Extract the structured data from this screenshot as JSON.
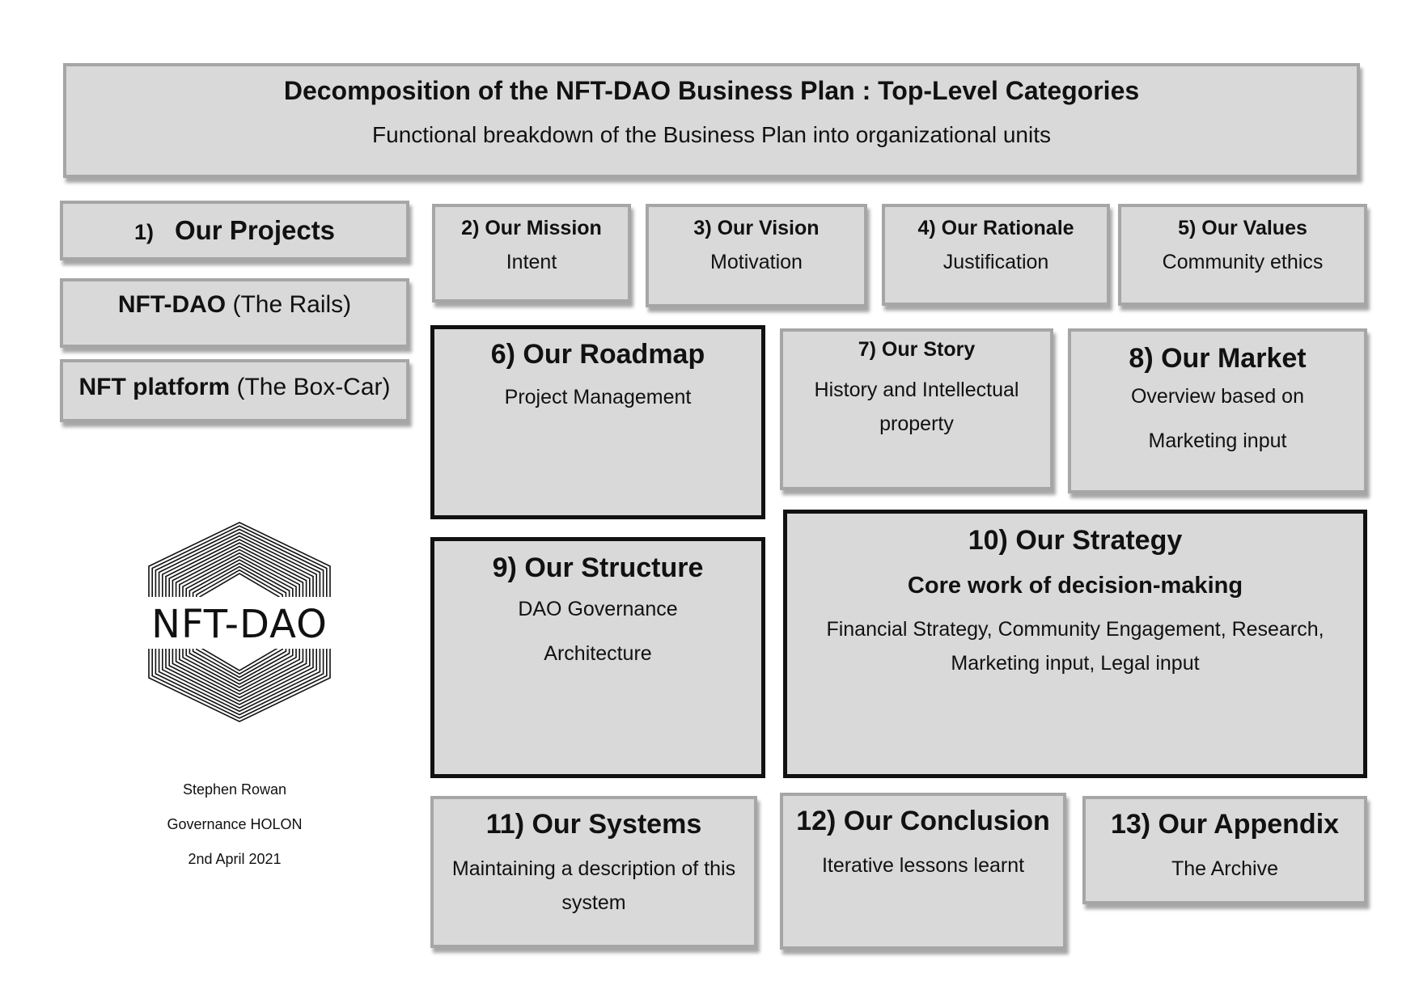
{
  "header": {
    "title": "Decomposition of the NFT-DAO Business Plan : Top-Level Categories",
    "subtitle": "Functional breakdown of the Business Plan into organizational units"
  },
  "projects": {
    "number": "1)",
    "title": "Our Projects",
    "items": [
      {
        "bold": "NFT-DAO",
        "rest": " (The Rails)"
      },
      {
        "bold": "NFT platform",
        "rest": " (The Box-Car)"
      }
    ]
  },
  "categories": {
    "mission": {
      "title": "2) Our Mission",
      "sub": "Intent"
    },
    "vision": {
      "title": "3) Our Vision",
      "sub": "Motivation"
    },
    "rationale": {
      "title": "4) Our Rationale",
      "sub": "Justification"
    },
    "values": {
      "title": "5) Our Values",
      "sub": "Community ethics"
    },
    "roadmap": {
      "title": "6) Our Roadmap",
      "sub": "Project Management"
    },
    "story": {
      "title": "7) Our Story",
      "sub1": "History and Intellectual",
      "sub2": "property"
    },
    "market": {
      "title": "8) Our Market",
      "sub1": "Overview based on",
      "sub2": "Marketing input"
    },
    "structure": {
      "title": "9) Our Structure",
      "sub1": "DAO Governance",
      "sub2": "Architecture"
    },
    "strategy": {
      "title": "10) Our Strategy",
      "subtitle": "Core work of decision-making",
      "sub1": "Financial Strategy, Community Engagement, Research,",
      "sub2": "Marketing input, Legal input"
    },
    "systems": {
      "title": "11) Our Systems",
      "sub1": "Maintaining a description of this",
      "sub2": "system"
    },
    "conclusion": {
      "title": "12) Our Conclusion",
      "sub": "Iterative lessons learnt"
    },
    "appendix": {
      "title": "13) Our Appendix",
      "sub": "The Archive"
    }
  },
  "logo": {
    "text": "NFT-DAO"
  },
  "author": {
    "name": "Stephen Rowan",
    "org": "Governance HOLON",
    "date": "2nd April 2021"
  }
}
